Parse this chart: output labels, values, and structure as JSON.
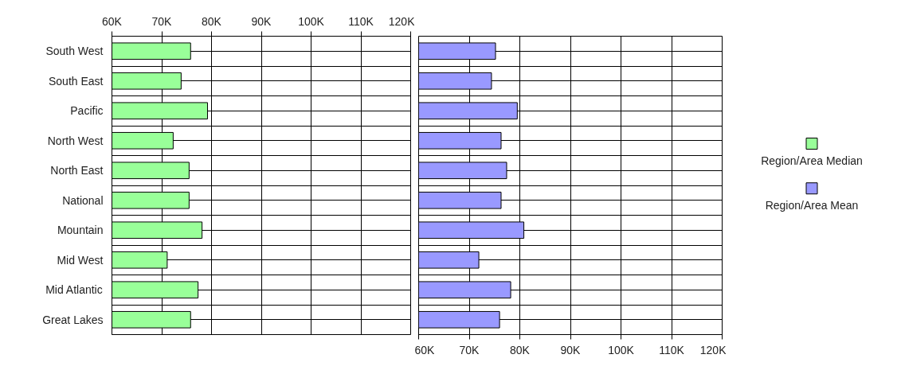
{
  "chart_data": [
    {
      "type": "bar",
      "orientation": "horizontal",
      "categories": [
        "South West",
        "South East",
        "Pacific",
        "North West",
        "North East",
        "National",
        "Mountain",
        "Mid West",
        "Mid Atlantic",
        "Great Lakes"
      ],
      "series": [
        {
          "name": "Region/Area Median",
          "color": "#99ff99",
          "values": [
            75800,
            73900,
            79200,
            72300,
            75500,
            75500,
            78100,
            71100,
            77300,
            75800
          ]
        }
      ],
      "xlim": [
        60000,
        120000
      ],
      "xticks": [
        {
          "value": 60000,
          "label": "60K"
        },
        {
          "value": 70000,
          "label": "70K"
        },
        {
          "value": 80000,
          "label": "80K"
        },
        {
          "value": 90000,
          "label": "90K"
        },
        {
          "value": 100000,
          "label": "100K"
        },
        {
          "value": 110000,
          "label": "110K"
        },
        {
          "value": 120000,
          "label": "120K"
        }
      ],
      "grid": true
    },
    {
      "type": "bar",
      "orientation": "horizontal",
      "categories": [
        null,
        null,
        null,
        null,
        null,
        null,
        null,
        null,
        null,
        null
      ],
      "series": [
        {
          "name": "Region/Area Mean",
          "color": "#9999ff",
          "values": [
            75200,
            74400,
            79500,
            76300,
            77400,
            76300,
            80800,
            71900,
            78200,
            76000
          ]
        }
      ],
      "xlim": [
        60000,
        120000
      ],
      "xticks": [
        {
          "value": 60000,
          "label": "60K"
        },
        {
          "value": 70000,
          "label": "70K"
        },
        {
          "value": 80000,
          "label": "80K"
        },
        {
          "value": 90000,
          "label": "90K"
        },
        {
          "value": 100000,
          "label": "100K"
        },
        {
          "value": 110000,
          "label": "110K"
        },
        {
          "value": 120000,
          "label": "120K"
        }
      ],
      "tick_labels": "x",
      "grid": true,
      "legend": "right"
    }
  ]
}
